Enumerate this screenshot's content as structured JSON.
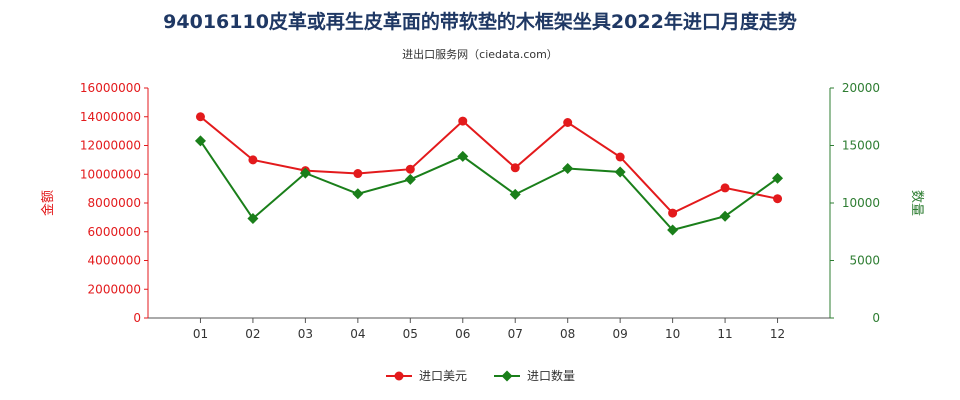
{
  "chart_data": {
    "type": "line",
    "title": "94016110皮革或再生皮革面的带软垫的木框架坐具2022年进口月度走势",
    "subtitle": "进出口服务网（ciedata.com）",
    "categories": [
      "01",
      "02",
      "03",
      "04",
      "05",
      "06",
      "07",
      "08",
      "09",
      "10",
      "11",
      "12"
    ],
    "y_left": {
      "label": "金额",
      "ylim": [
        0,
        16000000
      ],
      "ticks": [
        "0",
        "2000000",
        "4000000",
        "6000000",
        "8000000",
        "10000000",
        "12000000",
        "14000000",
        "16000000"
      ],
      "color": "#e31a1c"
    },
    "y_right": {
      "label": "数量",
      "ylim": [
        0,
        20000
      ],
      "ticks": [
        "0",
        "5000",
        "10000",
        "15000",
        "20000"
      ],
      "color": "#2e7d32"
    },
    "series": [
      {
        "name": "进口美元",
        "axis": "left",
        "color": "#e31a1c",
        "marker": "circle",
        "values": [
          14000000,
          11000000,
          10250000,
          10050000,
          10350000,
          13700000,
          10450000,
          13600000,
          11200000,
          7300000,
          9050000,
          8300000
        ]
      },
      {
        "name": "进口数量",
        "axis": "right",
        "color": "#1a7f1a",
        "marker": "diamond",
        "values": [
          15400,
          8650,
          12600,
          10800,
          12050,
          14050,
          10750,
          13000,
          12700,
          7650,
          8850,
          12150
        ]
      }
    ],
    "grid": false,
    "legend_position": "bottom-center"
  }
}
